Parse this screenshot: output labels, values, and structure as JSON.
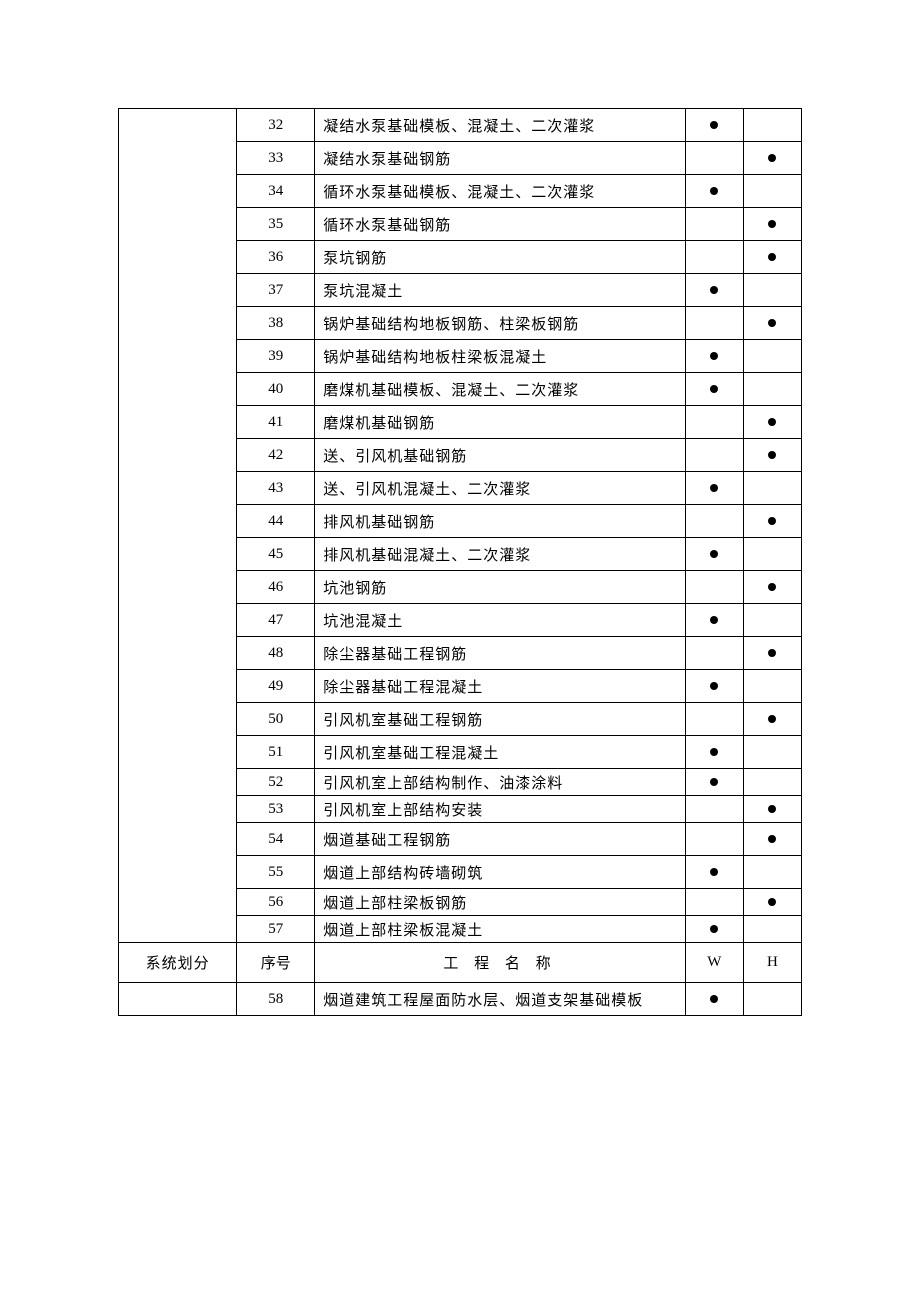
{
  "table": {
    "font_family": "SimSun",
    "font_size": 15,
    "text_color": "#000000",
    "border_color": "#000000",
    "dot_color": "#000000",
    "column_widths": {
      "section": 118,
      "num": 78,
      "name": 370,
      "w": 58,
      "h": 58
    },
    "row_height_normal": 33,
    "row_height_short": 27,
    "header_row_height": 40,
    "rows_block1": [
      {
        "num": "32",
        "name": "凝结水泵基础模板、混凝土、二次灌浆",
        "w": true,
        "h": false
      },
      {
        "num": "33",
        "name": "凝结水泵基础钢筋",
        "w": false,
        "h": true
      },
      {
        "num": "34",
        "name": "循环水泵基础模板、混凝土、二次灌浆",
        "w": true,
        "h": false
      },
      {
        "num": "35",
        "name": "循环水泵基础钢筋",
        "w": false,
        "h": true
      },
      {
        "num": "36",
        "name": "泵坑钢筋",
        "w": false,
        "h": true
      },
      {
        "num": "37",
        "name": "泵坑混凝土",
        "w": true,
        "h": false
      },
      {
        "num": "38",
        "name": "锅炉基础结构地板钢筋、柱梁板钢筋",
        "w": false,
        "h": true
      },
      {
        "num": "39",
        "name": "锅炉基础结构地板柱梁板混凝土",
        "w": true,
        "h": false
      },
      {
        "num": "40",
        "name": "磨煤机基础模板、混凝土、二次灌浆",
        "w": true,
        "h": false
      },
      {
        "num": "41",
        "name": "磨煤机基础钢筋",
        "w": false,
        "h": true
      },
      {
        "num": "42",
        "name": "送、引风机基础钢筋",
        "w": false,
        "h": true
      },
      {
        "num": "43",
        "name": "送、引风机混凝土、二次灌浆",
        "w": true,
        "h": false
      },
      {
        "num": "44",
        "name": "排风机基础钢筋",
        "w": false,
        "h": true
      },
      {
        "num": "45",
        "name": "排风机基础混凝土、二次灌浆",
        "w": true,
        "h": false
      },
      {
        "num": "46",
        "name": "坑池钢筋",
        "w": false,
        "h": true
      },
      {
        "num": "47",
        "name": "坑池混凝土",
        "w": true,
        "h": false
      },
      {
        "num": "48",
        "name": "除尘器基础工程钢筋",
        "w": false,
        "h": true
      },
      {
        "num": "49",
        "name": "除尘器基础工程混凝土",
        "w": true,
        "h": false
      },
      {
        "num": "50",
        "name": "引风机室基础工程钢筋",
        "w": false,
        "h": true
      },
      {
        "num": "51",
        "name": "引风机室基础工程混凝土",
        "w": true,
        "h": false
      },
      {
        "num": "52",
        "name": "引风机室上部结构制作、油漆涂料",
        "w": true,
        "h": false,
        "short": true
      },
      {
        "num": "53",
        "name": "引风机室上部结构安装",
        "w": false,
        "h": true,
        "short": true
      },
      {
        "num": "54",
        "name": "烟道基础工程钢筋",
        "w": false,
        "h": true
      },
      {
        "num": "55",
        "name": "烟道上部结构砖墙砌筑",
        "w": true,
        "h": false
      },
      {
        "num": "56",
        "name": "烟道上部柱梁板钢筋",
        "w": false,
        "h": true,
        "short": true
      },
      {
        "num": "57",
        "name": "烟道上部柱梁板混凝土",
        "w": true,
        "h": false,
        "short": true
      }
    ],
    "header": {
      "section": "系统划分",
      "num": "序号",
      "name": "工 程 名 称",
      "w": "W",
      "h": "H"
    },
    "rows_block2": [
      {
        "num": "58",
        "name": "烟道建筑工程屋面防水层、烟道支架基础模板",
        "w": true,
        "h": false
      }
    ]
  }
}
